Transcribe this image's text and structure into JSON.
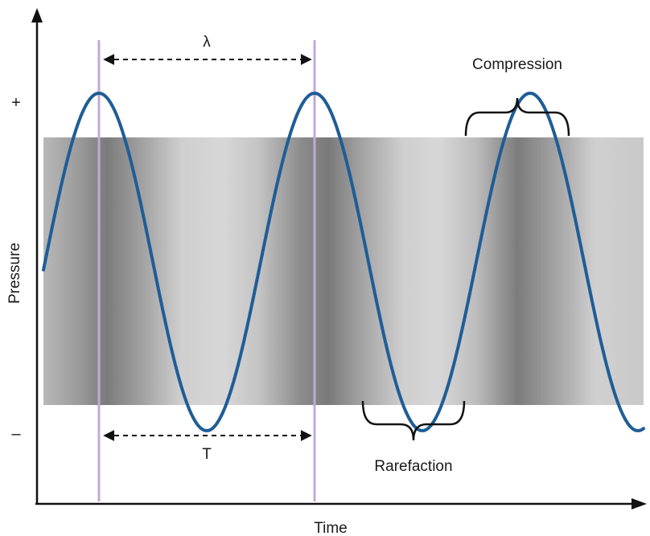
{
  "labels": {
    "y_axis": "Pressure",
    "x_axis": "Time",
    "plus": "+",
    "minus": "–",
    "wavelength": "λ",
    "period": "T",
    "compression": "Compression",
    "rarefaction": "Rarefaction"
  },
  "colors": {
    "wave": "#1f5d96",
    "marker_lines": "#c4a8d6",
    "band_light": "#d2d2d2",
    "band_dark": "#7e7e7e",
    "axes": "#111111"
  },
  "icons": {
    "y_arrow": "up-arrow-icon",
    "x_arrow": "right-arrow-icon"
  }
}
